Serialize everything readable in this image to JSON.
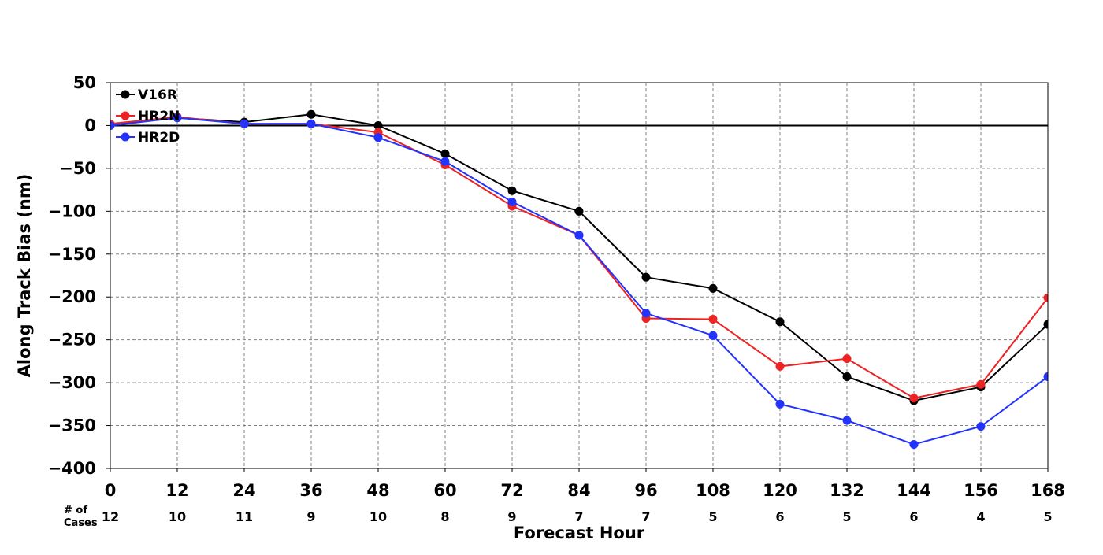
{
  "chart_data": {
    "type": "line",
    "title": "",
    "xlabel": "Forecast Hour",
    "ylabel": "Along Track Bias (nm)",
    "x": [
      0,
      12,
      24,
      36,
      48,
      60,
      72,
      84,
      96,
      108,
      120,
      132,
      144,
      156,
      168
    ],
    "xlim": [
      0,
      168
    ],
    "ylim": [
      -400,
      50
    ],
    "yticks": [
      50,
      0,
      -50,
      -100,
      -150,
      -200,
      -250,
      -300,
      -350,
      -400
    ],
    "grid": true,
    "zero_line": true,
    "legend_position": "top-left",
    "cases_title_line1": "# of",
    "cases_title_line2": "Cases",
    "cases": [
      12,
      10,
      11,
      9,
      10,
      8,
      9,
      7,
      7,
      5,
      6,
      5,
      6,
      4,
      5
    ],
    "series": [
      {
        "name": "V16R",
        "color": "#000000",
        "values": [
          1,
          9,
          4,
          13,
          0,
          -33,
          -76,
          -100,
          -177,
          -190,
          -229,
          -293,
          -321,
          -305,
          -232
        ]
      },
      {
        "name": "HR2N",
        "color": "#ee2222",
        "values": [
          2,
          10,
          2,
          2,
          -8,
          -46,
          -94,
          -128,
          -225,
          -226,
          -281,
          -272,
          -318,
          -302,
          -201
        ]
      },
      {
        "name": "HR2D",
        "color": "#2233ff",
        "values": [
          0,
          9,
          2,
          2,
          -14,
          -42,
          -89,
          -128,
          -219,
          -245,
          -325,
          -344,
          -372,
          -351,
          -293
        ]
      }
    ]
  }
}
